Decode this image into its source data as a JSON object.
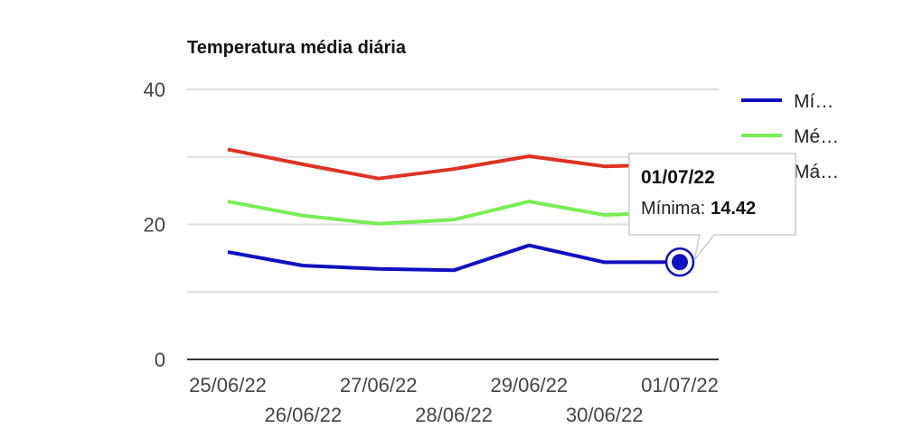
{
  "chart_data": {
    "type": "line",
    "title": "Temperatura média diária",
    "x": [
      "25/06/22",
      "26/06/22",
      "27/06/22",
      "28/06/22",
      "29/06/22",
      "30/06/22",
      "01/07/22"
    ],
    "ylim": [
      0,
      40
    ],
    "yticks": [
      "0",
      "20",
      "40"
    ],
    "grid": true,
    "legend_position": "right",
    "series": [
      {
        "name": "Mí…",
        "color": "#1010c0",
        "values": [
          15.9,
          13.9,
          13.4,
          13.2,
          16.9,
          14.4,
          14.42
        ]
      },
      {
        "name": "Mé…",
        "color": "#77ee55",
        "values": [
          23.4,
          21.3,
          20.1,
          20.7,
          23.4,
          21.4,
          21.8
        ]
      },
      {
        "name": "Má…",
        "color": "#dd3322",
        "values": [
          31.1,
          28.9,
          26.8,
          28.2,
          30.1,
          28.6,
          28.9
        ]
      }
    ],
    "tooltip": {
      "title": "01/07/22",
      "label": "Mínima:",
      "value": "14.42",
      "series_index": 0,
      "point_index": 6
    }
  }
}
